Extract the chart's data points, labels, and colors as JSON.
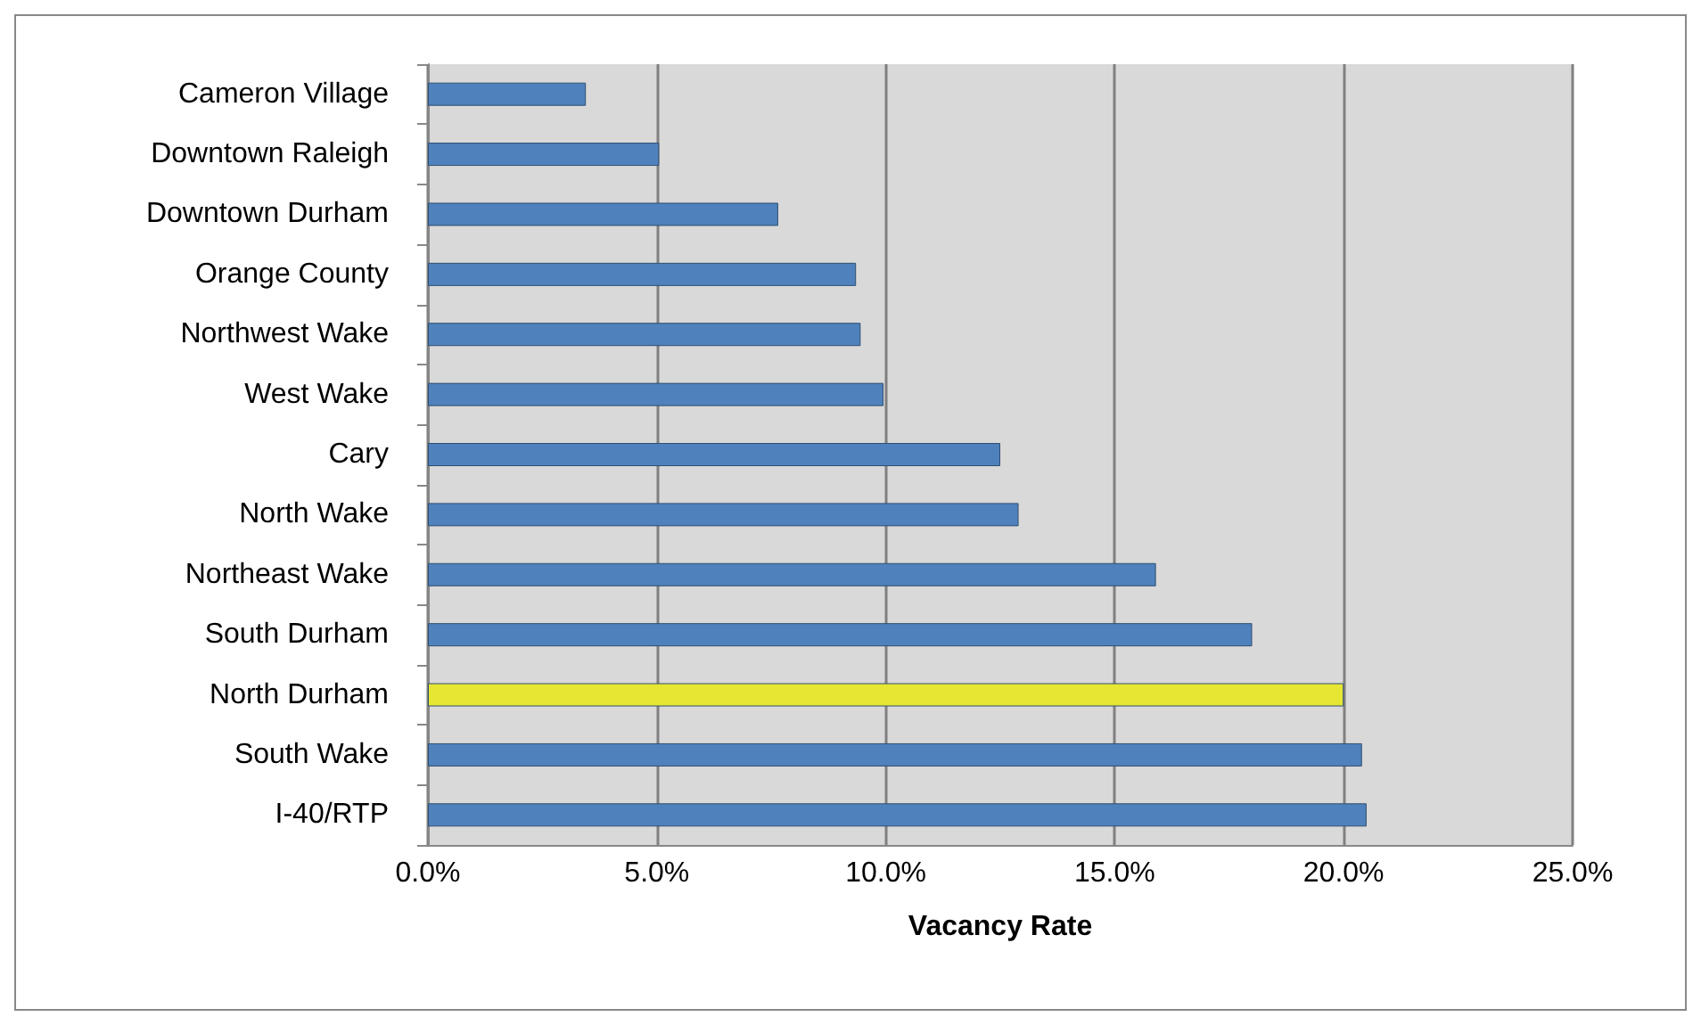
{
  "chart_data": {
    "type": "bar",
    "orientation": "horizontal",
    "xlabel": "Vacancy Rate",
    "categories": [
      "Cameron Village",
      "Downtown Raleigh",
      "Downtown Durham",
      "Orange County",
      "Northwest Wake",
      "West Wake",
      "Cary",
      "North Wake",
      "Northeast Wake",
      "South Durham",
      "North Durham",
      "South Wake",
      "I-40/RTP"
    ],
    "values": [
      3.45,
      5.05,
      7.65,
      9.35,
      9.45,
      9.95,
      12.5,
      12.9,
      15.9,
      18.0,
      20.0,
      20.4,
      20.5
    ],
    "colors": [
      "#4f81bd",
      "#4f81bd",
      "#4f81bd",
      "#4f81bd",
      "#4f81bd",
      "#4f81bd",
      "#4f81bd",
      "#4f81bd",
      "#4f81bd",
      "#4f81bd",
      "#e6e633",
      "#4f81bd",
      "#4f81bd"
    ],
    "xlim": [
      0,
      25
    ],
    "xticks": [
      {
        "value": 0,
        "label": "0.0%"
      },
      {
        "value": 5,
        "label": "5.0%"
      },
      {
        "value": 10,
        "label": "10.0%"
      },
      {
        "value": 15,
        "label": "15.0%"
      },
      {
        "value": 20,
        "label": "20.0%"
      },
      {
        "value": 25,
        "label": "25.0%"
      }
    ],
    "grid": "x"
  }
}
